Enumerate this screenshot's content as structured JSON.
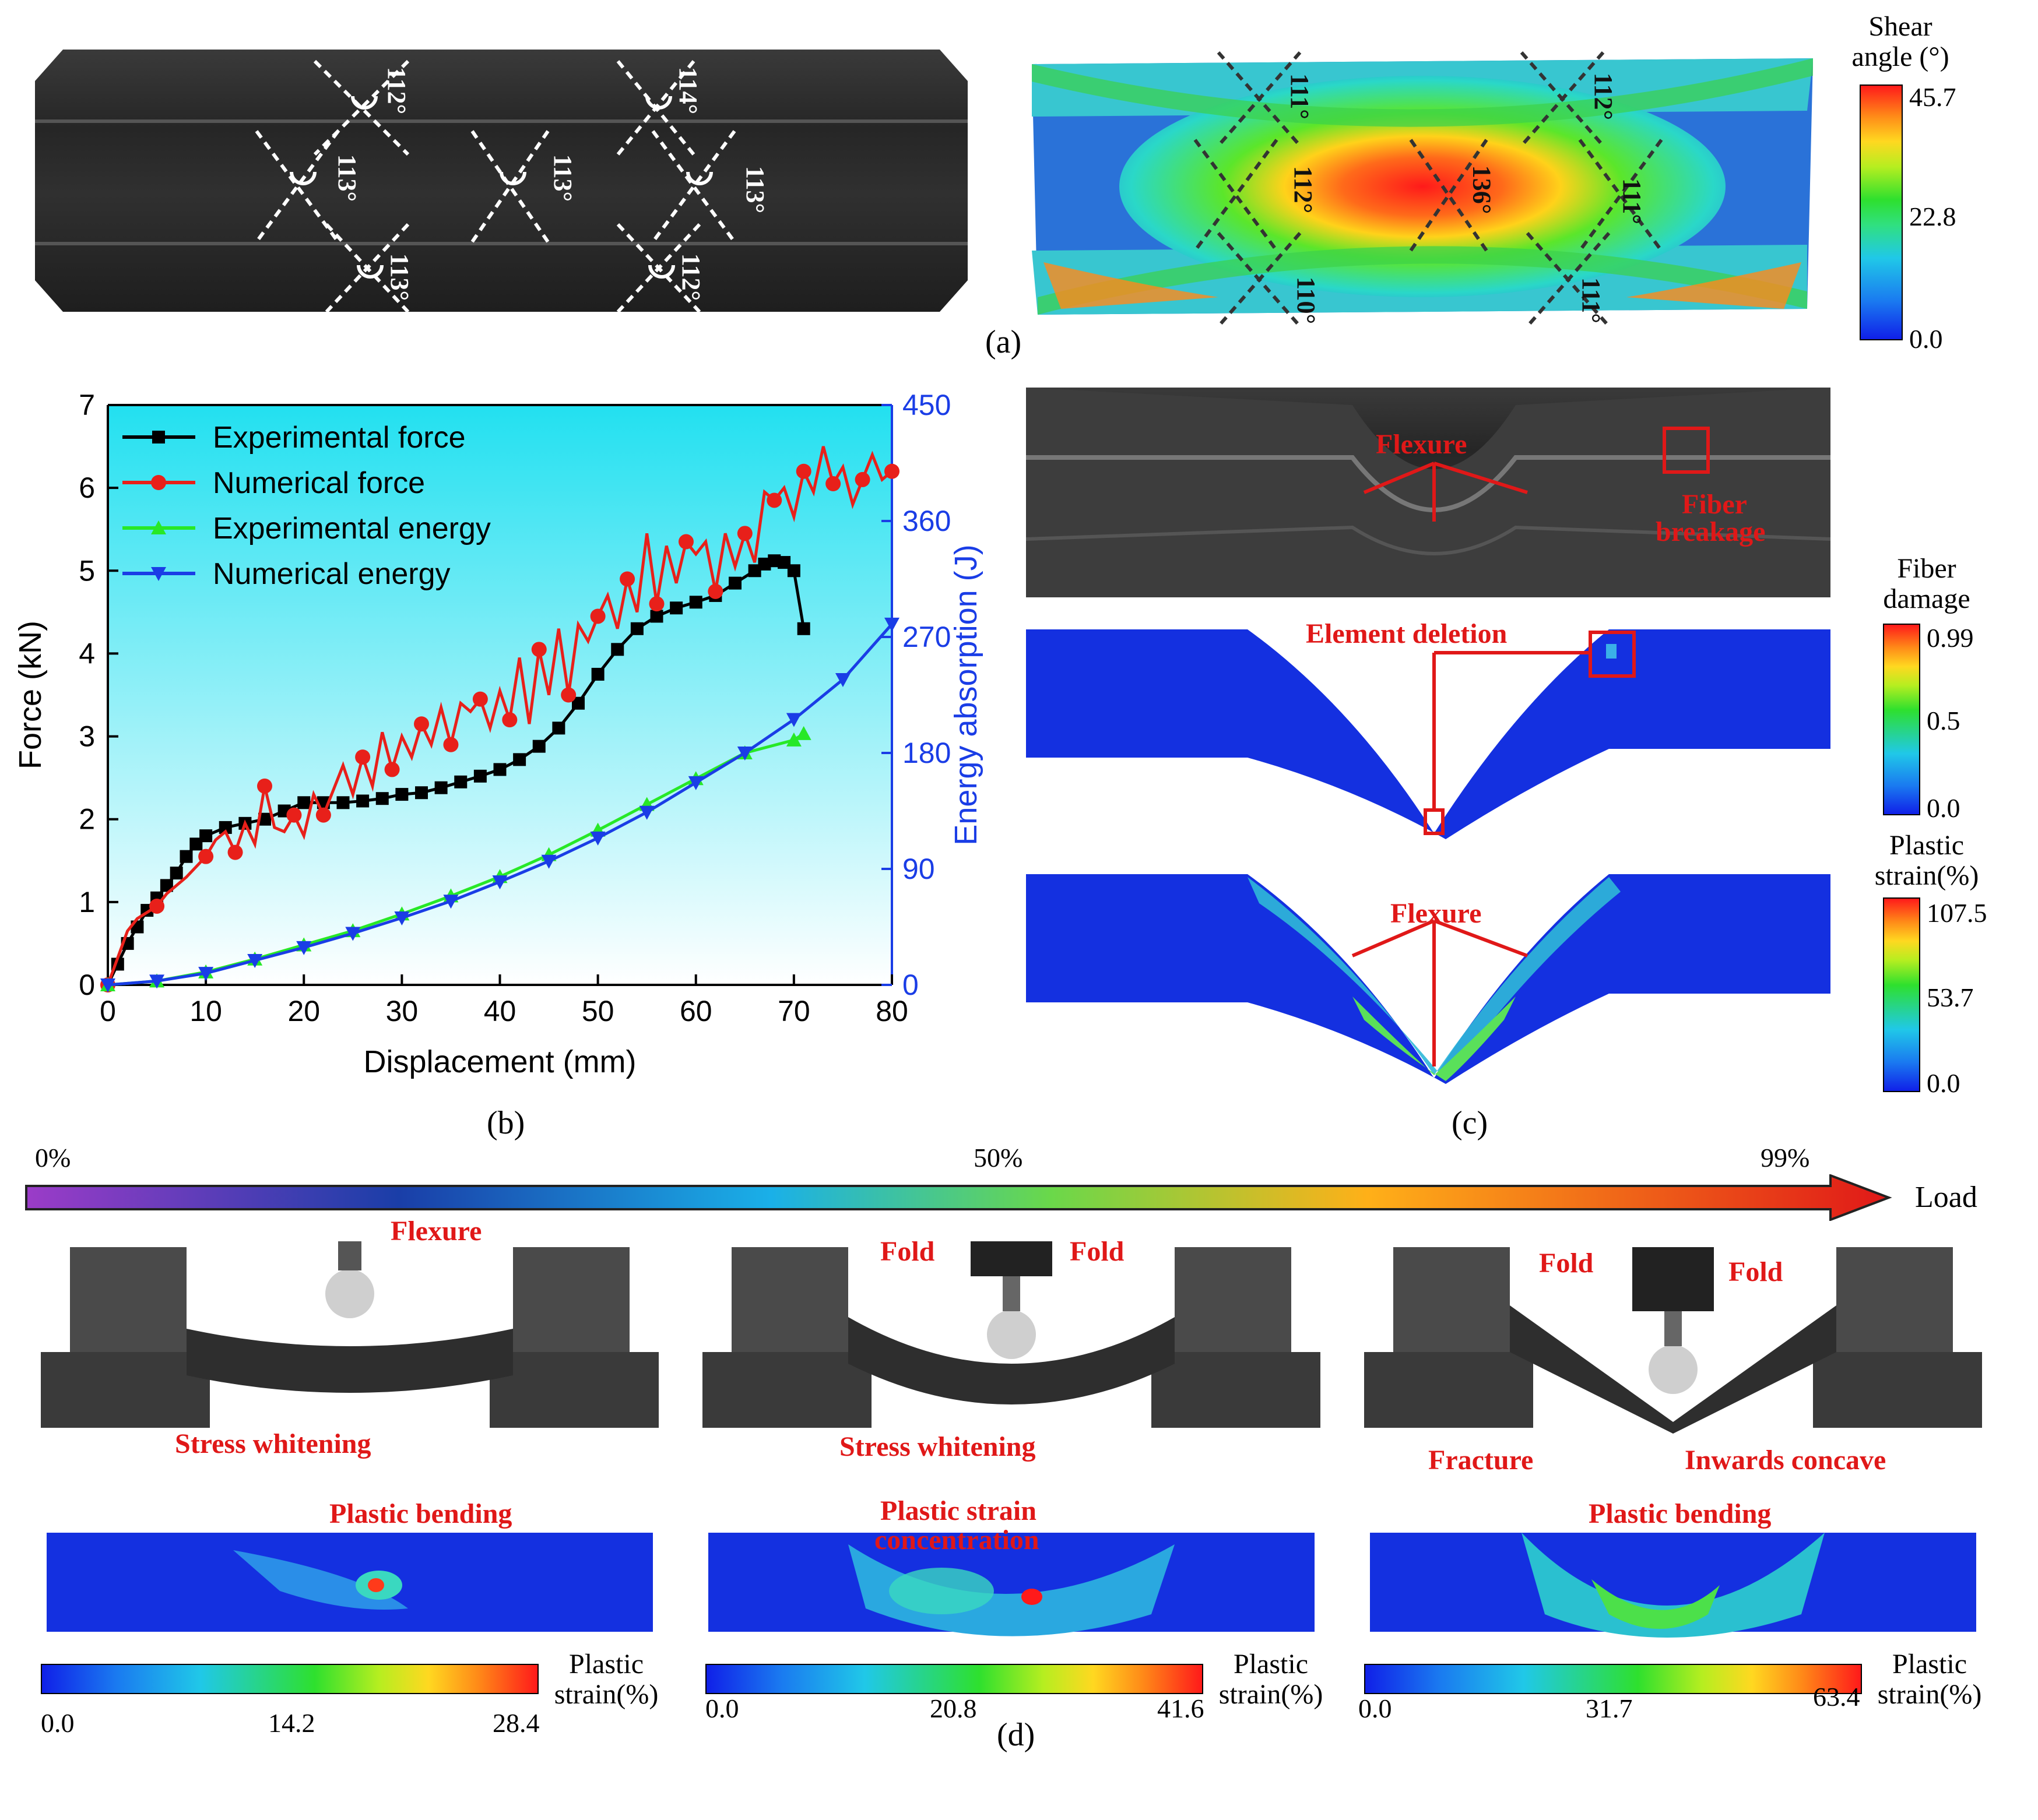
{
  "panel_a": {
    "label": "(a)",
    "experimental_angles": [
      "112°",
      "113°",
      "113°",
      "113°",
      "114°",
      "113°",
      "112°"
    ],
    "numerical_angles": [
      "111°",
      "112°",
      "112°",
      "136°",
      "111°",
      "110°",
      "111°"
    ],
    "colorbar": {
      "title_line1": "Shear",
      "title_line2": "angle (°)",
      "ticks": [
        "45.7",
        "22.8",
        "0.0"
      ]
    }
  },
  "panel_b": {
    "label": "(b)"
  },
  "panel_c": {
    "label": "(c)",
    "annotations": {
      "flexure_top": "Flexure",
      "fiber_breakage_1": "Fiber",
      "fiber_breakage_2": "breakage",
      "element_deletion": "Element deletion",
      "flexure_bottom": "Flexure"
    },
    "fiber_colorbar": {
      "title_line1": "Fiber",
      "title_line2": "damage",
      "ticks": [
        "0.99",
        "0.5",
        "0.0"
      ]
    },
    "plastic_colorbar": {
      "title_line1": "Plastic",
      "title_line2": "strain(%)",
      "ticks": [
        "107.5",
        "53.7",
        "0.0"
      ]
    }
  },
  "panel_d": {
    "label": "(d)",
    "load_bar": {
      "start": "0%",
      "mid": "50%",
      "end": "99%",
      "label": "Load"
    },
    "stage1": {
      "flexure": "Flexure",
      "stress_whitening": "Stress whitening",
      "sim": "Plastic bending",
      "cbar_title1": "Plastic",
      "cbar_title2": "strain(%)",
      "ticks": [
        "0.0",
        "14.2",
        "28.4"
      ]
    },
    "stage2": {
      "fold_left": "Fold",
      "fold_right": "Fold",
      "stress_whitening": "Stress whitening",
      "sim1": "Plastic strain",
      "sim2": "concentration",
      "cbar_title1": "Plastic",
      "cbar_title2": "strain(%)",
      "ticks": [
        "0.0",
        "20.8",
        "41.6"
      ]
    },
    "stage3": {
      "fold_left": "Fold",
      "fold_right": "Fold",
      "fracture": "Fracture",
      "inwards": "Inwards concave",
      "sim": "Plastic bending",
      "cbar_title1": "Plastic",
      "cbar_title2": "strain(%)",
      "ticks": [
        "0.0",
        "31.7",
        "63.4"
      ]
    }
  },
  "chart_data": {
    "type": "line",
    "xlabel": "Displacement (mm)",
    "ylabel": "Force (kN)",
    "y2label": "Energy absorption (J)",
    "xlim": [
      0,
      80
    ],
    "ylim": [
      0,
      7
    ],
    "y2lim": [
      0,
      450
    ],
    "xticks": [
      0,
      10,
      20,
      30,
      40,
      50,
      60,
      70,
      80
    ],
    "yticks": [
      0,
      1,
      2,
      3,
      4,
      5,
      6,
      7
    ],
    "y2ticks": [
      0,
      90,
      180,
      270,
      360,
      450
    ],
    "legend_position": "top-left",
    "series": [
      {
        "name": "Experimental force",
        "axis": "left",
        "color": "#000000",
        "marker": "square",
        "x": [
          0,
          1,
          2,
          3,
          4,
          5,
          6,
          7,
          8,
          9,
          10,
          12,
          14,
          16,
          18,
          20,
          22,
          24,
          26,
          28,
          30,
          32,
          34,
          36,
          38,
          40,
          42,
          44,
          46,
          48,
          50,
          52,
          54,
          56,
          58,
          60,
          62,
          64,
          66,
          67,
          68,
          69,
          70,
          71
        ],
        "y": [
          0,
          0.25,
          0.5,
          0.7,
          0.9,
          1.05,
          1.2,
          1.35,
          1.55,
          1.7,
          1.8,
          1.9,
          1.95,
          2.0,
          2.1,
          2.2,
          2.2,
          2.2,
          2.22,
          2.25,
          2.3,
          2.32,
          2.38,
          2.45,
          2.52,
          2.6,
          2.72,
          2.88,
          3.1,
          3.4,
          3.75,
          4.05,
          4.3,
          4.45,
          4.55,
          4.62,
          4.7,
          4.85,
          5.0,
          5.08,
          5.12,
          5.1,
          5.0,
          4.3
        ]
      },
      {
        "name": "Numerical force",
        "axis": "left",
        "color": "#e8201a",
        "marker": "circle",
        "x": [
          0,
          2,
          3,
          5,
          6,
          8,
          10,
          11,
          12,
          13,
          14,
          15,
          16,
          17,
          18,
          19,
          20,
          21,
          22,
          24,
          25,
          26,
          27,
          28,
          29,
          30,
          31,
          32,
          33,
          34,
          35,
          36,
          37,
          38,
          39,
          40,
          41,
          42,
          43,
          44,
          45,
          46,
          47,
          48,
          49,
          50,
          51,
          52,
          53,
          54,
          55,
          56,
          57,
          58,
          59,
          60,
          61,
          62,
          63,
          64,
          65,
          66,
          67,
          68,
          69,
          70,
          71,
          72,
          73,
          74,
          75,
          76,
          77,
          78,
          79,
          80
        ],
        "y": [
          0,
          0.65,
          0.8,
          0.95,
          1.1,
          1.3,
          1.55,
          1.75,
          1.85,
          1.6,
          1.95,
          1.7,
          2.4,
          1.9,
          1.85,
          2.05,
          1.8,
          2.3,
          2.05,
          2.65,
          2.3,
          2.75,
          2.4,
          3.05,
          2.6,
          3.0,
          2.75,
          3.15,
          2.9,
          3.35,
          2.9,
          3.4,
          3.3,
          3.45,
          3.1,
          3.55,
          3.2,
          3.95,
          3.15,
          4.05,
          3.5,
          4.3,
          3.5,
          4.35,
          4.15,
          4.45,
          4.7,
          4.3,
          4.9,
          4.5,
          5.45,
          4.6,
          5.3,
          4.85,
          5.35,
          5.2,
          5.35,
          4.75,
          5.45,
          5.05,
          5.45,
          5.1,
          5.95,
          5.85,
          6.0,
          5.65,
          6.2,
          5.95,
          6.5,
          6.05,
          6.25,
          5.8,
          6.1,
          6.4,
          6.1,
          6.2
        ]
      },
      {
        "name": "Experimental energy",
        "axis": "right",
        "color": "#27e827",
        "marker": "triangle-up",
        "x": [
          0,
          5,
          10,
          15,
          20,
          25,
          30,
          35,
          40,
          45,
          50,
          55,
          60,
          65,
          70,
          71
        ],
        "y": [
          0,
          3,
          10,
          20,
          31,
          42,
          55,
          69,
          84,
          101,
          120,
          140,
          160,
          180,
          190,
          195
        ]
      },
      {
        "name": "Numerical energy",
        "axis": "right",
        "color": "#1a3de6",
        "marker": "triangle-down",
        "x": [
          0,
          5,
          10,
          15,
          20,
          25,
          30,
          35,
          40,
          45,
          50,
          55,
          60,
          65,
          70,
          75,
          80
        ],
        "y": [
          0,
          3,
          9,
          19,
          29,
          40,
          52,
          65,
          80,
          96,
          114,
          134,
          157,
          180,
          206,
          237,
          280
        ]
      }
    ]
  }
}
